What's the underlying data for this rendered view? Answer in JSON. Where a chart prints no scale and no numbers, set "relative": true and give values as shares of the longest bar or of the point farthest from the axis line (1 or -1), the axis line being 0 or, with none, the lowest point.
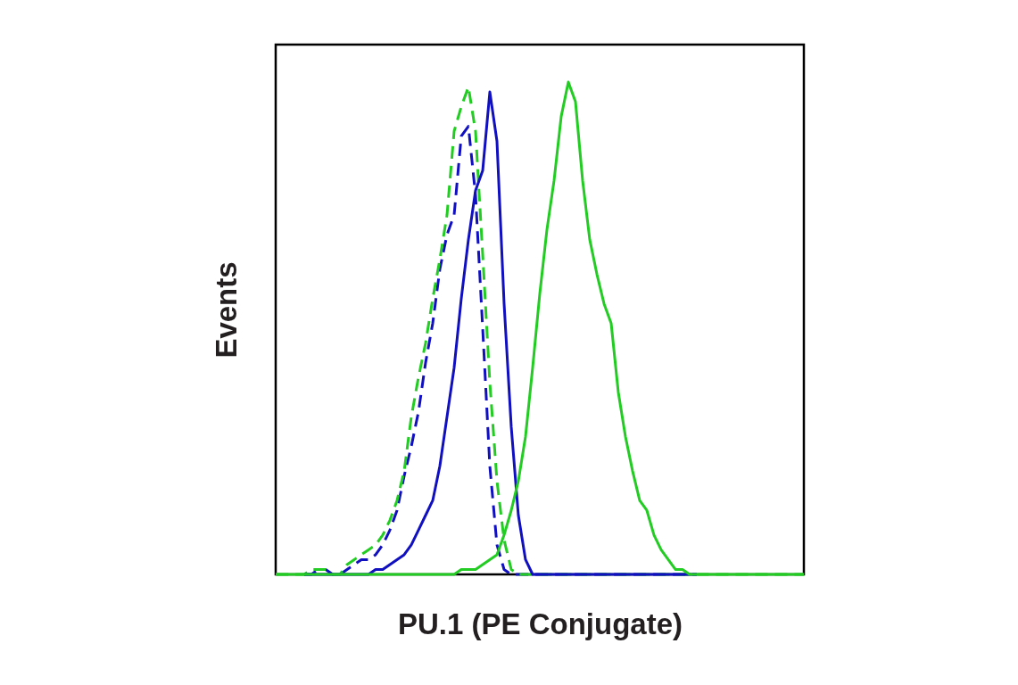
{
  "chart_data": {
    "type": "line",
    "relative": true,
    "xlabel": "PU.1 (PE Conjugate)",
    "ylabel": "Events",
    "categories": [
      null,
      null,
      null,
      null,
      null,
      null,
      null,
      null,
      null,
      null,
      null,
      null,
      null,
      null,
      null,
      null,
      null,
      null,
      null,
      null,
      null,
      null,
      null,
      null,
      null,
      null,
      null,
      null,
      null,
      null,
      null,
      null,
      null,
      null,
      null,
      null,
      null,
      null,
      null,
      null,
      null,
      null,
      null,
      null,
      null,
      null,
      null,
      null,
      null,
      null,
      null,
      null,
      null,
      null,
      null,
      null,
      null,
      null,
      null,
      null,
      null,
      null,
      null,
      null,
      null,
      null,
      null,
      null,
      null,
      null,
      null,
      null,
      null,
      null,
      null
    ],
    "series": [
      {
        "color": "#1010c0",
        "line_style": "dashed",
        "values": [
          null,
          null,
          null,
          null,
          0,
          0,
          0.01,
          0.01,
          0,
          0,
          0.01,
          0.02,
          0.03,
          0.03,
          0.04,
          0.06,
          0.09,
          0.13,
          0.2,
          0.26,
          0.33,
          0.43,
          0.51,
          0.62,
          0.69,
          0.73,
          0.89,
          0.91,
          0.77,
          0.5,
          0.22,
          0.06,
          0.01,
          0,
          0,
          0,
          0,
          0,
          0,
          0,
          0,
          0,
          0,
          0,
          0,
          0,
          0,
          0,
          0,
          0,
          0,
          0,
          0,
          0,
          0,
          0,
          0,
          0,
          0,
          0,
          null,
          null,
          null,
          null,
          null,
          null,
          null,
          null,
          null,
          null,
          null,
          null,
          null,
          null,
          null
        ]
      },
      {
        "color": "#22cc22",
        "line_style": "dashed",
        "values": [
          0,
          0,
          0,
          0,
          0,
          0.01,
          0.01,
          0.01,
          0,
          0,
          0.02,
          0.03,
          0.04,
          0.05,
          0.06,
          0.08,
          0.11,
          0.15,
          0.21,
          0.32,
          0.4,
          0.47,
          0.56,
          0.64,
          0.73,
          0.9,
          0.95,
          0.99,
          0.9,
          0.65,
          0.39,
          0.19,
          0.07,
          0.01,
          0,
          0,
          0,
          0,
          0,
          0,
          0,
          0,
          0,
          0,
          0,
          0,
          0,
          0,
          0,
          0,
          0,
          0,
          0,
          0,
          0,
          0,
          0,
          0,
          0,
          0,
          0,
          0,
          0,
          0,
          0,
          0,
          0,
          0,
          0,
          0,
          0,
          0,
          0,
          0,
          0
        ]
      },
      {
        "color": "#1010c0",
        "line_style": "solid",
        "values": [
          null,
          null,
          null,
          null,
          0,
          0,
          0,
          0,
          0,
          0,
          0,
          0,
          0,
          0,
          0.01,
          0.01,
          0.02,
          0.03,
          0.04,
          0.06,
          0.09,
          0.12,
          0.15,
          0.22,
          0.32,
          0.42,
          0.56,
          0.68,
          0.78,
          0.82,
          0.98,
          0.88,
          0.55,
          0.3,
          0.12,
          0.03,
          0,
          0,
          0,
          0,
          0,
          0,
          0,
          0,
          0,
          0,
          0,
          0,
          0,
          0,
          0,
          0,
          0,
          0,
          0,
          0,
          0,
          0,
          0,
          0,
          null,
          null,
          null,
          null,
          null,
          null,
          null,
          null,
          null,
          null,
          null,
          null,
          null,
          null,
          null
        ]
      },
      {
        "color": "#22cc22",
        "line_style": "solid",
        "values": [
          0,
          0,
          0,
          0,
          0,
          0,
          0,
          0,
          0,
          0,
          0,
          0,
          0,
          0,
          0,
          0,
          0,
          0,
          0,
          0,
          0,
          0,
          0,
          0,
          0,
          0,
          0.01,
          0.01,
          0.01,
          0.02,
          0.03,
          0.04,
          0.08,
          0.13,
          0.19,
          0.28,
          0.42,
          0.57,
          0.7,
          0.8,
          0.93,
          1,
          0.96,
          0.8,
          0.68,
          0.61,
          0.55,
          0.51,
          0.37,
          0.28,
          0.21,
          0.15,
          0.13,
          0.08,
          0.05,
          0.03,
          0.01,
          0.01,
          0,
          0,
          0,
          0,
          0,
          0,
          0,
          0,
          0,
          0,
          0,
          0,
          0,
          0,
          0,
          0,
          0
        ]
      }
    ]
  }
}
